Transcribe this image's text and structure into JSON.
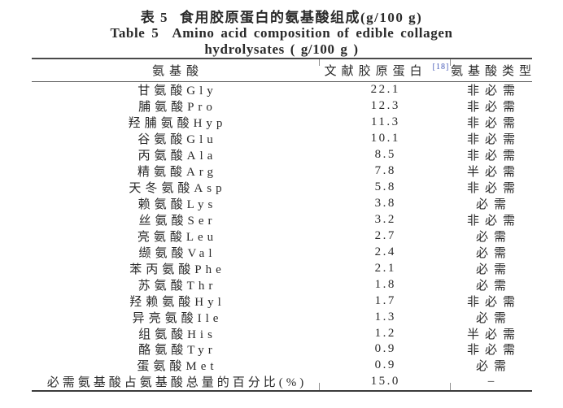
{
  "title": {
    "zh_label": "表 5",
    "zh_text": "食用胶原蛋白的氨基酸组成(g/100 g)",
    "en_label": "Table 5",
    "en_line1": "Amino acid composition of edible collagen",
    "en_line2": "hydrolysates ( g/100 g )"
  },
  "table": {
    "columns": [
      {
        "label": "氨基酸"
      },
      {
        "label": "文献胶原蛋白",
        "superscript": "[18]"
      },
      {
        "label": "氨基酸类型"
      }
    ],
    "rows": [
      {
        "name": "甘氨酸Gly",
        "value": "22.1",
        "type": "非必需"
      },
      {
        "name": "脯氨酸Pro",
        "value": "12.3",
        "type": "非必需"
      },
      {
        "name": "羟脯氨酸Hyp",
        "value": "11.3",
        "type": "非必需"
      },
      {
        "name": "谷氨酸Glu",
        "value": "10.1",
        "type": "非必需"
      },
      {
        "name": "丙氨酸Ala",
        "value": "8.5",
        "type": "非必需"
      },
      {
        "name": "精氨酸Arg",
        "value": "7.8",
        "type": "半必需"
      },
      {
        "name": "天冬氨酸Asp",
        "value": "5.8",
        "type": "非必需"
      },
      {
        "name": "赖氨酸Lys",
        "value": "3.8",
        "type": "必需"
      },
      {
        "name": "丝氨酸Ser",
        "value": "3.2",
        "type": "非必需"
      },
      {
        "name": "亮氨酸Leu",
        "value": "2.7",
        "type": "必需"
      },
      {
        "name": "缬氨酸Val",
        "value": "2.4",
        "type": "必需"
      },
      {
        "name": "苯丙氨酸Phe",
        "value": "2.1",
        "type": "必需"
      },
      {
        "name": "苏氨酸Thr",
        "value": "1.8",
        "type": "必需"
      },
      {
        "name": "羟赖氨酸Hyl",
        "value": "1.7",
        "type": "非必需"
      },
      {
        "name": "异亮氨酸Ile",
        "value": "1.3",
        "type": "必需"
      },
      {
        "name": "组氨酸His",
        "value": "1.2",
        "type": "半必需"
      },
      {
        "name": "酪氨酸Tyr",
        "value": "0.9",
        "type": "非必需"
      },
      {
        "name": "蛋氨酸Met",
        "value": "0.9",
        "type": "必需"
      },
      {
        "name": "必需氨基酸占氨基酸总量的百分比(%)",
        "value": "15.0",
        "type": "–"
      }
    ]
  },
  "colors": {
    "text": "#2a2a2a",
    "rule": "#4a4a4a",
    "citation_link": "#4055b5",
    "background": "#ffffff"
  }
}
